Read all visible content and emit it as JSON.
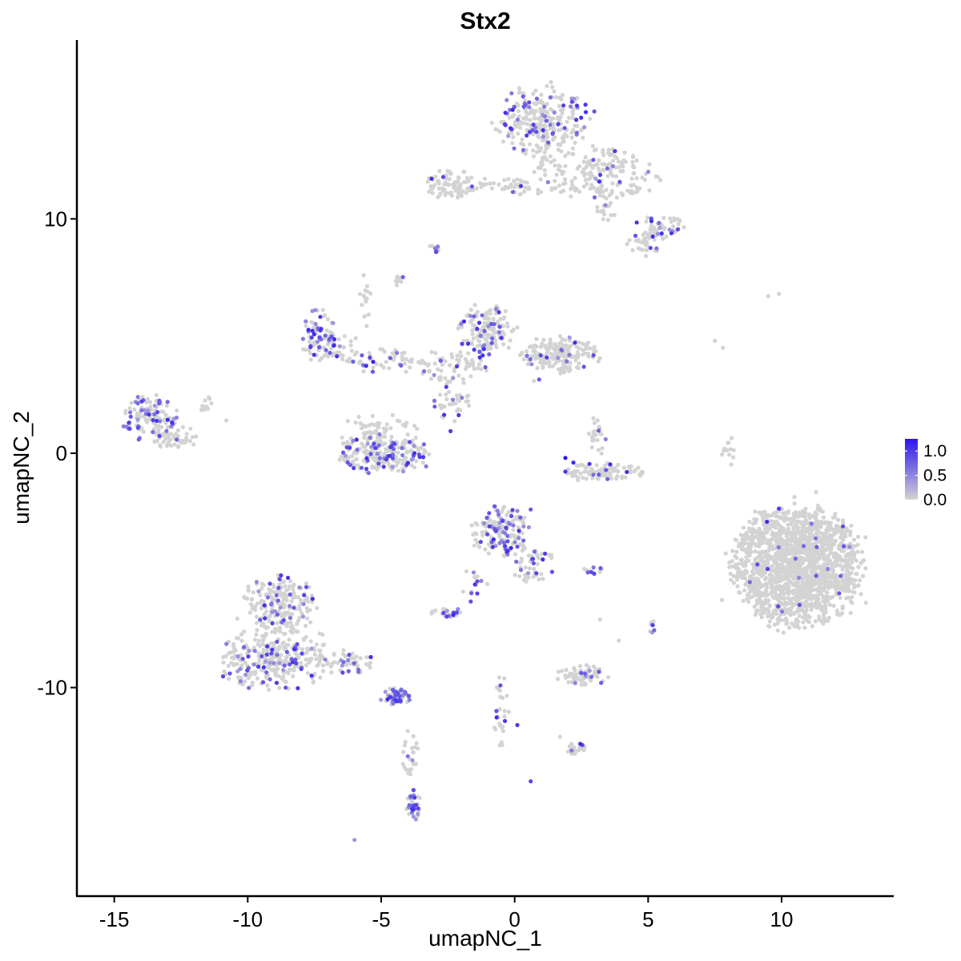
{
  "chart_data": {
    "type": "scatter",
    "title": "Stx2",
    "xlabel": "umapNC_1",
    "ylabel": "umapNC_2",
    "xlim": [
      -16.4,
      14.2
    ],
    "ylim": [
      -18.9,
      17.7
    ],
    "x_ticks": [
      -15,
      -10,
      -5,
      0,
      5,
      10
    ],
    "x_tick_labels": [
      "-15",
      "-10",
      "-5",
      "0",
      "5",
      "10"
    ],
    "y_ticks": [
      -10,
      0,
      10
    ],
    "y_tick_labels": [
      "-10",
      "0",
      "10"
    ],
    "grid": false,
    "legend": {
      "placement": "right",
      "type": "colorbar",
      "breaks": [
        1.0,
        0.5,
        0.0
      ],
      "labels": [
        "1.0",
        "0.5",
        "0.0"
      ],
      "min": 0.0,
      "max": 1.25
    },
    "colors": {
      "low": "#d3d3d3",
      "high": "#2a14ee"
    },
    "clusters": [
      {
        "cx": 1.0,
        "cy": 14.2,
        "rx": 1.6,
        "ry": 1.3,
        "n": 260,
        "p": 0.22
      },
      {
        "cx": 3.3,
        "cy": 12.0,
        "rx": 2.0,
        "ry": 1.1,
        "n": 170,
        "p": 0.06
      },
      {
        "cx": 5.4,
        "cy": 9.6,
        "rx": 1.0,
        "ry": 0.5,
        "n": 55,
        "p": 0.18
      },
      {
        "cx": 4.8,
        "cy": 8.9,
        "rx": 0.6,
        "ry": 0.45,
        "n": 25,
        "p": 0.1
      },
      {
        "cx": -2.4,
        "cy": 11.5,
        "rx": 0.8,
        "ry": 0.6,
        "n": 80,
        "p": 0.04
      },
      {
        "cx": -0.1,
        "cy": 11.4,
        "rx": 2.3,
        "ry": 0.3,
        "n": 60,
        "p": 0.05
      },
      {
        "cx": 1.0,
        "cy": 12.5,
        "rx": 0.3,
        "ry": 1.5,
        "n": 30,
        "p": 0.03
      },
      {
        "cx": 3.5,
        "cy": 10.3,
        "rx": 0.7,
        "ry": 0.35,
        "n": 15,
        "p": 0.05
      },
      {
        "cx": -7.4,
        "cy": 5.1,
        "rx": 0.6,
        "ry": 1.1,
        "n": 80,
        "p": 0.35
      },
      {
        "cx": -6.6,
        "cy": 4.5,
        "rx": 0.9,
        "ry": 0.5,
        "n": 35,
        "p": 0.18
      },
      {
        "cx": -5.0,
        "cy": 3.9,
        "rx": 1.4,
        "ry": 0.5,
        "n": 50,
        "p": 0.15
      },
      {
        "cx": -5.6,
        "cy": 6.5,
        "rx": 0.2,
        "ry": 1.1,
        "n": 15,
        "p": 0.02
      },
      {
        "cx": -1.0,
        "cy": 5.3,
        "rx": 1.0,
        "ry": 1.0,
        "n": 150,
        "p": 0.26
      },
      {
        "cx": 1.6,
        "cy": 4.2,
        "rx": 1.4,
        "ry": 0.7,
        "n": 190,
        "p": 0.07
      },
      {
        "cx": -2.3,
        "cy": 3.7,
        "rx": 1.2,
        "ry": 0.6,
        "n": 70,
        "p": 0.12
      },
      {
        "cx": -2.4,
        "cy": 2.1,
        "rx": 0.7,
        "ry": 1.0,
        "n": 40,
        "p": 0.16
      },
      {
        "cx": -5.0,
        "cy": 0.9,
        "rx": 1.4,
        "ry": 0.7,
        "n": 50,
        "p": 0.05
      },
      {
        "cx": -5.0,
        "cy": 0.0,
        "rx": 1.6,
        "ry": 0.75,
        "n": 220,
        "p": 0.27
      },
      {
        "cx": -13.6,
        "cy": 1.5,
        "rx": 0.9,
        "ry": 0.9,
        "n": 120,
        "p": 0.28
      },
      {
        "cx": -12.6,
        "cy": 0.6,
        "rx": 0.8,
        "ry": 0.5,
        "n": 50,
        "p": 0.05
      },
      {
        "cx": -11.7,
        "cy": 2.2,
        "rx": 0.5,
        "ry": 0.35,
        "n": 10,
        "p": 0.0
      },
      {
        "cx": 3.1,
        "cy": 0.7,
        "rx": 0.3,
        "ry": 0.8,
        "n": 25,
        "p": 0.12
      },
      {
        "cx": 3.2,
        "cy": -0.8,
        "rx": 1.4,
        "ry": 0.35,
        "n": 90,
        "p": 0.07
      },
      {
        "cx": 8.0,
        "cy": 0.1,
        "rx": 0.2,
        "ry": 0.8,
        "n": 12,
        "p": 0.0
      },
      {
        "cx": 10.6,
        "cy": -4.8,
        "rx": 2.2,
        "ry": 2.3,
        "n": 1700,
        "p": 0.015
      },
      {
        "cx": -0.5,
        "cy": -3.4,
        "rx": 1.0,
        "ry": 1.0,
        "n": 160,
        "p": 0.33
      },
      {
        "cx": 0.7,
        "cy": -4.8,
        "rx": 0.7,
        "ry": 0.7,
        "n": 45,
        "p": 0.3
      },
      {
        "cx": -1.5,
        "cy": -5.7,
        "rx": 0.5,
        "ry": 0.7,
        "n": 15,
        "p": 0.4
      },
      {
        "cx": -2.5,
        "cy": -6.8,
        "rx": 0.6,
        "ry": 0.2,
        "n": 30,
        "p": 0.45
      },
      {
        "cx": -8.8,
        "cy": -6.5,
        "rx": 1.2,
        "ry": 1.2,
        "n": 210,
        "p": 0.18
      },
      {
        "cx": -9.0,
        "cy": -8.8,
        "rx": 1.9,
        "ry": 1.2,
        "n": 310,
        "p": 0.15
      },
      {
        "cx": -6.2,
        "cy": -8.9,
        "rx": 0.9,
        "ry": 0.45,
        "n": 50,
        "p": 0.3
      },
      {
        "cx": -4.4,
        "cy": -10.4,
        "rx": 0.5,
        "ry": 0.35,
        "n": 70,
        "p": 0.55
      },
      {
        "cx": -3.8,
        "cy": -15.0,
        "rx": 0.25,
        "ry": 0.6,
        "n": 40,
        "p": 0.45
      },
      {
        "cx": -3.9,
        "cy": -12.8,
        "rx": 0.3,
        "ry": 1.2,
        "n": 25,
        "p": 0.05
      },
      {
        "cx": 2.5,
        "cy": -9.5,
        "rx": 0.9,
        "ry": 0.4,
        "n": 70,
        "p": 0.05
      },
      {
        "cx": 2.3,
        "cy": -12.6,
        "rx": 0.35,
        "ry": 0.25,
        "n": 25,
        "p": 0.08
      },
      {
        "cx": -0.5,
        "cy": -11.0,
        "rx": 0.3,
        "ry": 1.5,
        "n": 30,
        "p": 0.12
      },
      {
        "cx": 2.9,
        "cy": -5.0,
        "rx": 0.35,
        "ry": 0.15,
        "n": 12,
        "p": 0.5
      },
      {
        "cx": 5.1,
        "cy": -7.4,
        "rx": 0.15,
        "ry": 0.3,
        "n": 8,
        "p": 0.6
      },
      {
        "cx": -3.0,
        "cy": 8.7,
        "rx": 0.25,
        "ry": 0.25,
        "n": 10,
        "p": 0.6
      },
      {
        "cx": -4.3,
        "cy": 7.3,
        "rx": 0.25,
        "ry": 0.25,
        "n": 10,
        "p": 0.15
      }
    ],
    "extra_points": [
      {
        "x": 1.9,
        "y": -0.2,
        "v": 1.25
      },
      {
        "x": 2.2,
        "y": -0.4,
        "v": 1.1
      },
      {
        "x": 4.2,
        "y": -0.8,
        "v": 1.05
      },
      {
        "x": -5.3,
        "y": 3.9,
        "v": 1.15
      },
      {
        "x": 0.6,
        "y": -14.0,
        "v": 0.9
      },
      {
        "x": 0.1,
        "y": -11.6,
        "v": 1.0
      },
      {
        "x": -6.0,
        "y": -16.5,
        "v": 0.4
      },
      {
        "x": 9.5,
        "y": 6.7,
        "v": 0.0
      },
      {
        "x": 9.9,
        "y": 6.8,
        "v": 0.0
      },
      {
        "x": 7.5,
        "y": 4.8,
        "v": 0.0
      },
      {
        "x": 7.8,
        "y": 4.5,
        "v": 0.0
      },
      {
        "x": -10.8,
        "y": 1.4,
        "v": 0.0
      },
      {
        "x": 3.2,
        "y": -7.1,
        "v": 0.0
      },
      {
        "x": 3.9,
        "y": -8.0,
        "v": 0.0
      },
      {
        "x": 1.7,
        "y": -12.1,
        "v": 0.0
      },
      {
        "x": 0.6,
        "y": -2.4,
        "v": 0.8
      }
    ]
  }
}
